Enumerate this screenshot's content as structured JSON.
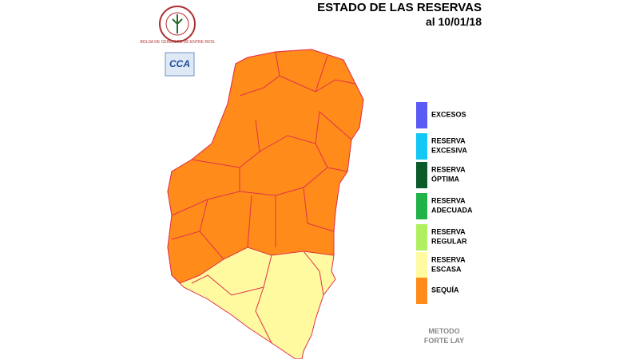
{
  "header": {
    "title": "ESTADO DE LAS RESERVAS",
    "date": "al 10/01/18"
  },
  "logos": {
    "bolsa": "BOLSA DE CEREALES DE ENTRE RIOS",
    "cca": "CCA"
  },
  "legend": [
    {
      "lines": [
        "EXCESOS"
      ],
      "color": "#5a5af5"
    },
    {
      "lines": [
        "RESERVA",
        "EXCESIVA"
      ],
      "color": "#14c8f5"
    },
    {
      "lines": [
        "RESERVA",
        "ÓPTIMA"
      ],
      "color": "#0a5a2a"
    },
    {
      "lines": [
        "RESERVA",
        "ADECUADA"
      ],
      "color": "#22b24a"
    },
    {
      "lines": [
        "RESERVA",
        "REGULAR"
      ],
      "color": "#b0f060"
    },
    {
      "lines": [
        "RESERVA",
        "ESCASA"
      ],
      "color": "#fffaa0"
    },
    {
      "lines": [
        "SEQUÍA"
      ],
      "color": "#ff8c1a"
    }
  ],
  "method": [
    "METODO",
    "FORTE LAY"
  ]
}
